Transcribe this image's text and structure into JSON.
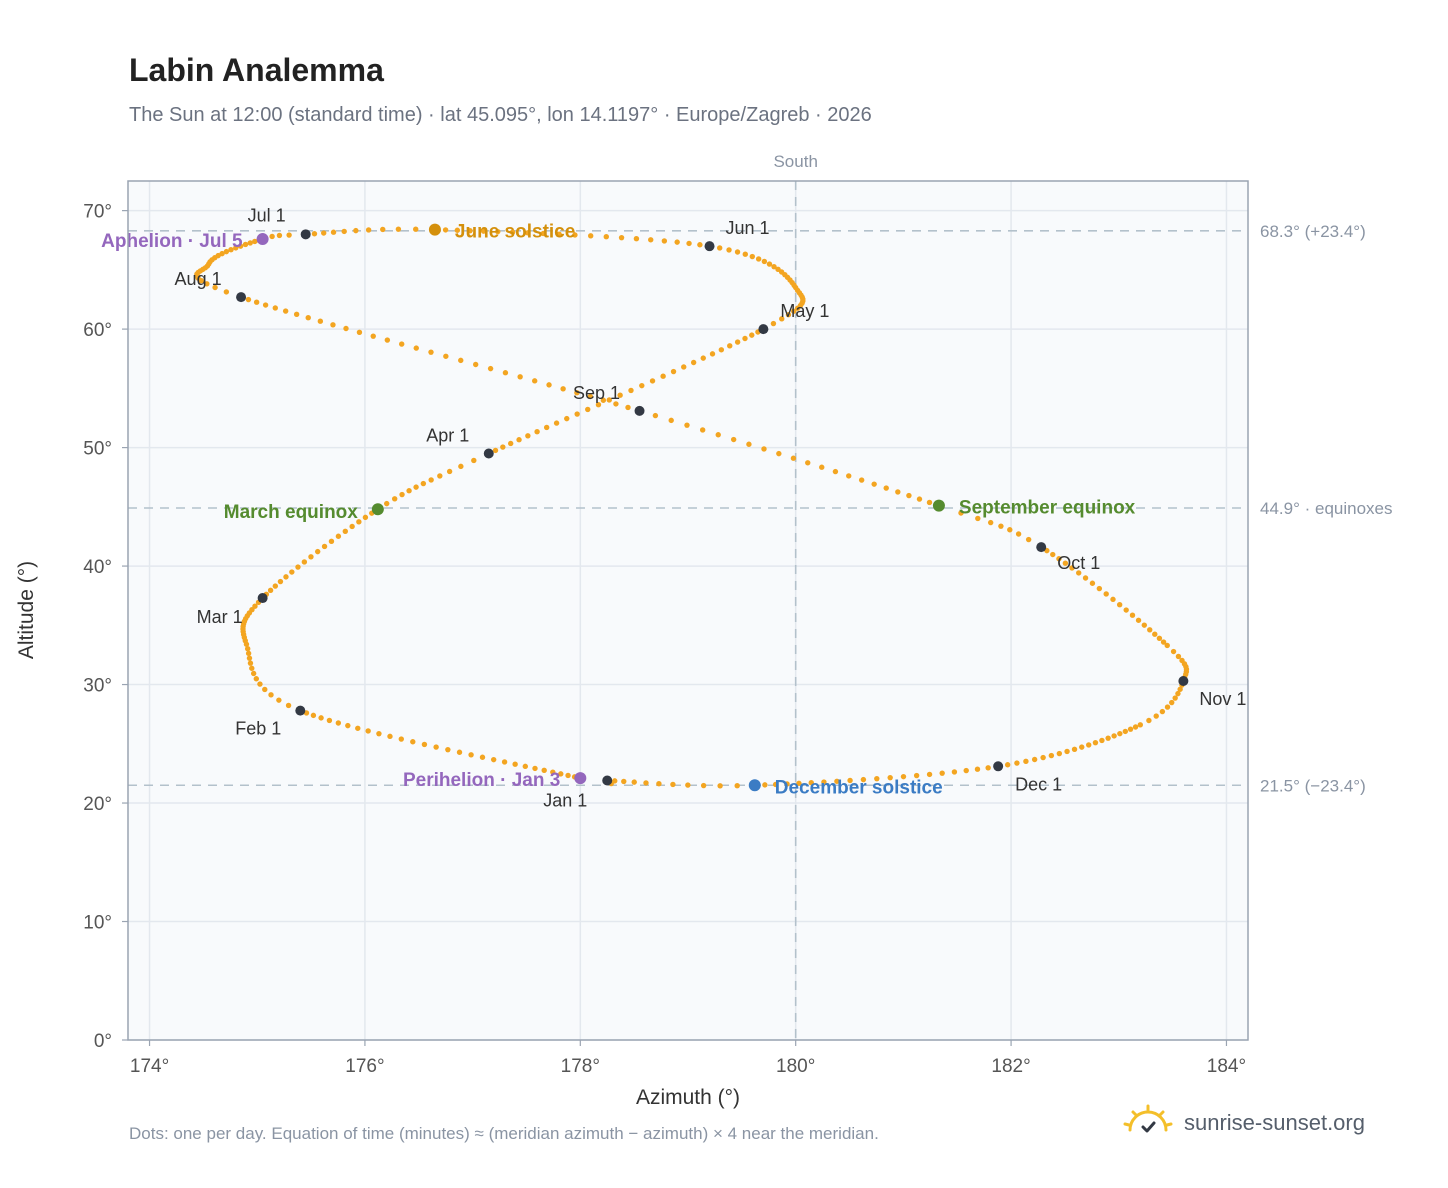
{
  "header": {
    "title": "Labin Analemma",
    "subtitle": "The Sun at 12:00 (standard time) · lat 45.095°, lon 14.1197° · Europe/Zagreb · 2026"
  },
  "footer": {
    "note": "Dots: one per day. Equation of time (minutes) ≈ (meridian azimuth − azimuth) × 4 near the meridian.",
    "brand": "sunrise-sunset.org",
    "brand_icon": "sun-check-icon"
  },
  "colors": {
    "path": "#f3a521",
    "month_marker": "#333944",
    "june_solstice": "#d4900c",
    "equinox": "#558b2f",
    "december_solstice": "#3b7cc4",
    "apsis": "#9467bd",
    "reference_line": "#b3c1cb",
    "plot_background": "#f8fafc"
  },
  "chart_data": {
    "type": "scatter",
    "xlabel": "Azimuth (°)",
    "ylabel": "Altitude (°)",
    "xlim": [
      173.8,
      184.2
    ],
    "ylim": [
      0,
      72.5
    ],
    "x_ticks": [
      174,
      176,
      178,
      180,
      182,
      184
    ],
    "x_tick_labels": [
      "174°",
      "176°",
      "178°",
      "180°",
      "182°",
      "184°"
    ],
    "y_ticks": [
      0,
      10,
      20,
      30,
      40,
      50,
      60,
      70
    ],
    "y_tick_labels": [
      "0°",
      "10°",
      "20°",
      "30°",
      "40°",
      "50°",
      "60°",
      "70°"
    ],
    "grid": true,
    "meridian": {
      "azimuth": 180,
      "label": "South"
    },
    "reference_lines": [
      {
        "altitude": 68.3,
        "label": "68.3° (+23.4°)"
      },
      {
        "altitude": 44.9,
        "label": "44.9° · equinoxes"
      },
      {
        "altitude": 21.5,
        "label": "21.5° (−23.4°)"
      }
    ],
    "analemma_keypoints": [
      {
        "day": 1,
        "az": 178.25,
        "alt": 21.9
      },
      {
        "day": 3,
        "az": 178.0,
        "alt": 22.1
      },
      {
        "day": 32,
        "az": 175.4,
        "alt": 27.8
      },
      {
        "day": 45,
        "az": 174.9,
        "alt": 33.4
      },
      {
        "day": 60,
        "az": 175.05,
        "alt": 37.3
      },
      {
        "day": 79,
        "az": 176.12,
        "alt": 44.8
      },
      {
        "day": 91,
        "az": 177.15,
        "alt": 49.5
      },
      {
        "day": 121,
        "az": 179.7,
        "alt": 60.0
      },
      {
        "day": 135,
        "az": 180.0,
        "alt": 63.5
      },
      {
        "day": 152,
        "az": 179.2,
        "alt": 67.0
      },
      {
        "day": 172,
        "az": 176.65,
        "alt": 68.4
      },
      {
        "day": 182,
        "az": 175.45,
        "alt": 68.0
      },
      {
        "day": 186,
        "az": 175.05,
        "alt": 67.6
      },
      {
        "day": 200,
        "az": 174.55,
        "alt": 65.5
      },
      {
        "day": 213,
        "az": 174.85,
        "alt": 62.7
      },
      {
        "day": 244,
        "az": 178.55,
        "alt": 53.1
      },
      {
        "day": 266,
        "az": 181.33,
        "alt": 45.1
      },
      {
        "day": 274,
        "az": 182.28,
        "alt": 41.6
      },
      {
        "day": 295,
        "az": 183.45,
        "alt": 33.3
      },
      {
        "day": 305,
        "az": 183.6,
        "alt": 30.3
      },
      {
        "day": 315,
        "az": 183.2,
        "alt": 26.6
      },
      {
        "day": 335,
        "az": 181.88,
        "alt": 23.1
      },
      {
        "day": 355,
        "az": 179.62,
        "alt": 21.5
      },
      {
        "day": 366,
        "az": 178.25,
        "alt": 21.9
      }
    ],
    "month_markers": [
      {
        "label": "Jan 1",
        "az": 178.25,
        "alt": 21.9,
        "anchor": "middle",
        "dx": -42,
        "dy": 26
      },
      {
        "label": "Feb 1",
        "az": 175.4,
        "alt": 27.8,
        "anchor": "middle",
        "dx": -42,
        "dy": 24
      },
      {
        "label": "Mar 1",
        "az": 175.05,
        "alt": 37.3,
        "anchor": "middle",
        "dx": -43,
        "dy": 25
      },
      {
        "label": "Apr 1",
        "az": 177.15,
        "alt": 49.5,
        "anchor": "middle",
        "dx": -41,
        "dy": -12
      },
      {
        "label": "May 1",
        "az": 179.7,
        "alt": 60.0,
        "anchor": "start",
        "dx": 17,
        "dy": -12
      },
      {
        "label": "Jun 1",
        "az": 179.2,
        "alt": 67.0,
        "anchor": "start",
        "dx": 16,
        "dy": -12
      },
      {
        "label": "Jul 1",
        "az": 175.45,
        "alt": 68.0,
        "anchor": "middle",
        "dx": -39,
        "dy": -13
      },
      {
        "label": "Aug 1",
        "az": 174.85,
        "alt": 62.7,
        "anchor": "middle",
        "dx": -43,
        "dy": -12
      },
      {
        "label": "Sep 1",
        "az": 178.55,
        "alt": 53.1,
        "anchor": "middle",
        "dx": -43,
        "dy": -12
      },
      {
        "label": "Oct 1",
        "az": 182.28,
        "alt": 41.6,
        "anchor": "start",
        "dx": 16,
        "dy": 22
      },
      {
        "label": "Nov 1",
        "az": 183.6,
        "alt": 30.3,
        "anchor": "start",
        "dx": 16,
        "dy": 24
      },
      {
        "label": "Dec 1",
        "az": 181.88,
        "alt": 23.1,
        "anchor": "start",
        "dx": 17,
        "dy": 24
      }
    ],
    "events": [
      {
        "label": "June solstice",
        "az": 176.65,
        "alt": 68.4,
        "color": "#d4900c",
        "anchor": "start",
        "dx": 20,
        "dy": 8
      },
      {
        "label": "Aphelion · Jul 5",
        "az": 175.05,
        "alt": 67.6,
        "color": "#9467bd",
        "anchor": "end",
        "dx": -20,
        "dy": 8
      },
      {
        "label": "March equinox",
        "az": 176.12,
        "alt": 44.8,
        "color": "#558b2f",
        "anchor": "end",
        "dx": -20,
        "dy": 9
      },
      {
        "label": "September equinox",
        "az": 181.33,
        "alt": 45.1,
        "color": "#558b2f",
        "anchor": "start",
        "dx": 20,
        "dy": 8
      },
      {
        "label": "Perihelion · Jan 3",
        "az": 178.0,
        "alt": 22.1,
        "color": "#9467bd",
        "anchor": "end",
        "dx": -20,
        "dy": 8
      },
      {
        "label": "December solstice",
        "az": 179.62,
        "alt": 21.5,
        "color": "#3b7cc4",
        "anchor": "start",
        "dx": 20,
        "dy": 8
      }
    ]
  }
}
